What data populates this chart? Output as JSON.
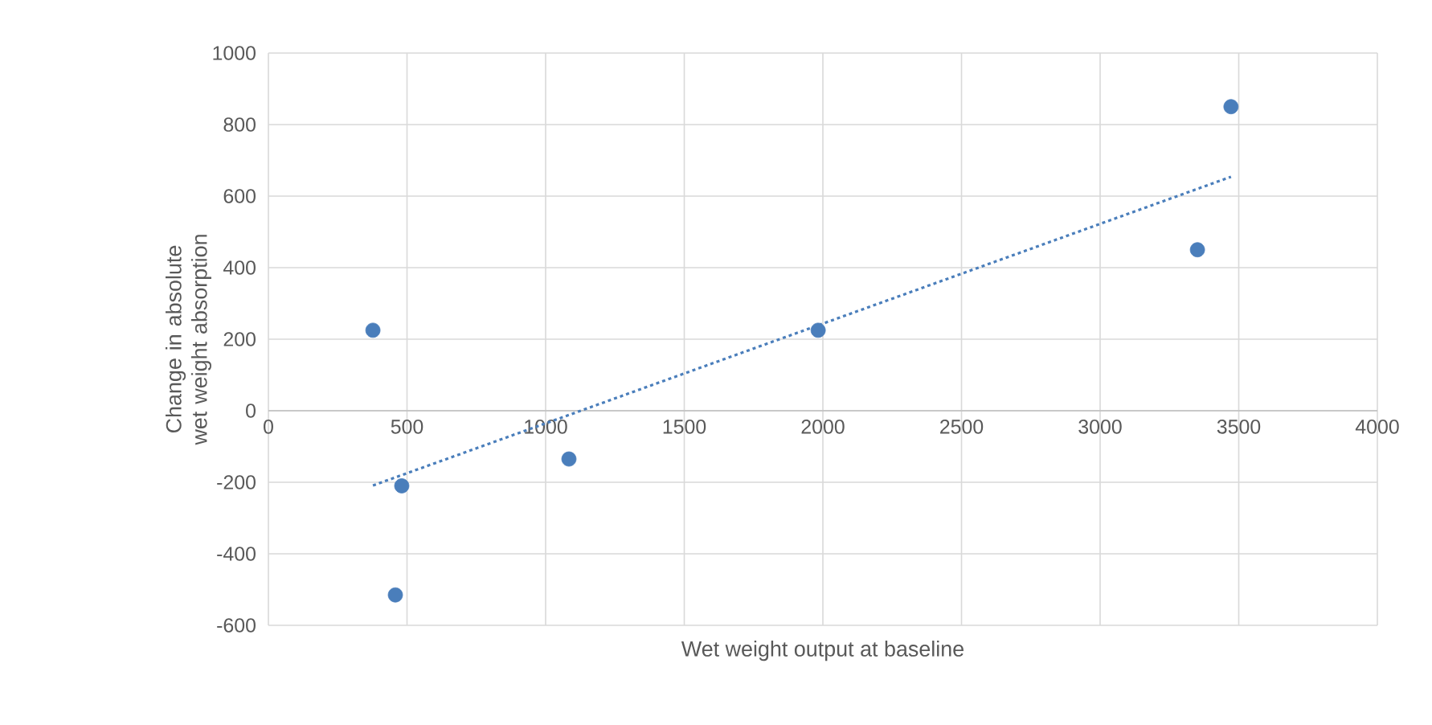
{
  "chart_data": {
    "type": "scatter",
    "xlabel": "Wet weight output at baseline",
    "ylabel": "Change in absolute wet weight absorption",
    "xlim": [
      0,
      4000
    ],
    "xticks": [
      0,
      500,
      1000,
      1500,
      2000,
      2500,
      3000,
      3500,
      4000
    ],
    "ylim": [
      -600,
      1000
    ],
    "yticks": [
      -600,
      -400,
      -200,
      0,
      200,
      400,
      600,
      800,
      1000
    ],
    "grid": true,
    "series": [
      {
        "type": "scatter",
        "color": "#4a7ebb",
        "marker": "circle",
        "x": [
          377,
          481,
          458,
          1084,
          1983,
          3351,
          3472
        ],
        "values": [
          225,
          -210,
          -515,
          -135,
          225,
          450,
          850
        ]
      },
      {
        "type": "line",
        "color": "#4a7ebb",
        "line_style": "dotted",
        "marker": "none",
        "x": [
          377,
          3472
        ],
        "values": [
          -209,
          654
        ]
      }
    ]
  }
}
